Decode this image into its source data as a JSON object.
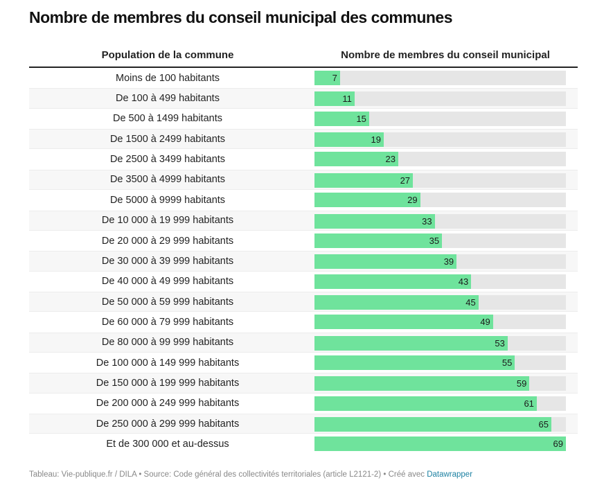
{
  "title": "Nombre de membres du conseil municipal des communes",
  "chart_data": {
    "type": "bar",
    "orientation": "horizontal",
    "title": "Nombre de membres du conseil municipal des communes",
    "columns": [
      "Population de la commune",
      "Nombre de membres du conseil municipal"
    ],
    "categories": [
      "Moins de 100 habitants",
      "De 100 à 499 habitants",
      "De 500 à 1499 habitants",
      "De 1500 à 2499 habitants",
      "De 2500 à 3499 habitants",
      "De 3500 à 4999 habitants",
      "De 5000 à 9999 habitants",
      "De 10 000 à 19 999 habitants",
      "De 20 000 à 29 999 habitants",
      "De 30 000 à 39 999 habitants",
      "De 40 000 à 49 999 habitants",
      "De 50 000 à 59 999 habitants",
      "De 60 000 à 79 999 habitants",
      "De 80 000 à 99 999 habitants",
      "De 100 000 à 149 999 habitants",
      "De 150 000 à 199 999 habitants",
      "De 200 000 à 249 999 habitants",
      "De 250 000 à 299 999 habitants",
      "Et de 300 000 et au-dessus"
    ],
    "values": [
      7,
      11,
      15,
      19,
      23,
      27,
      29,
      33,
      35,
      39,
      43,
      45,
      49,
      53,
      55,
      59,
      61,
      65,
      69
    ],
    "xlim": [
      0,
      69
    ],
    "bar_color": "#6fe39c",
    "track_color": "#e6e6e6",
    "grid": false,
    "legend": "none"
  },
  "footer": {
    "text": "Tableau: Vie-publique.fr / DILA • Source: Code général des collectivités territoriales (article L2121-2) • Créé avec ",
    "link": "Datawrapper",
    "link_color": "#1d81a2"
  }
}
